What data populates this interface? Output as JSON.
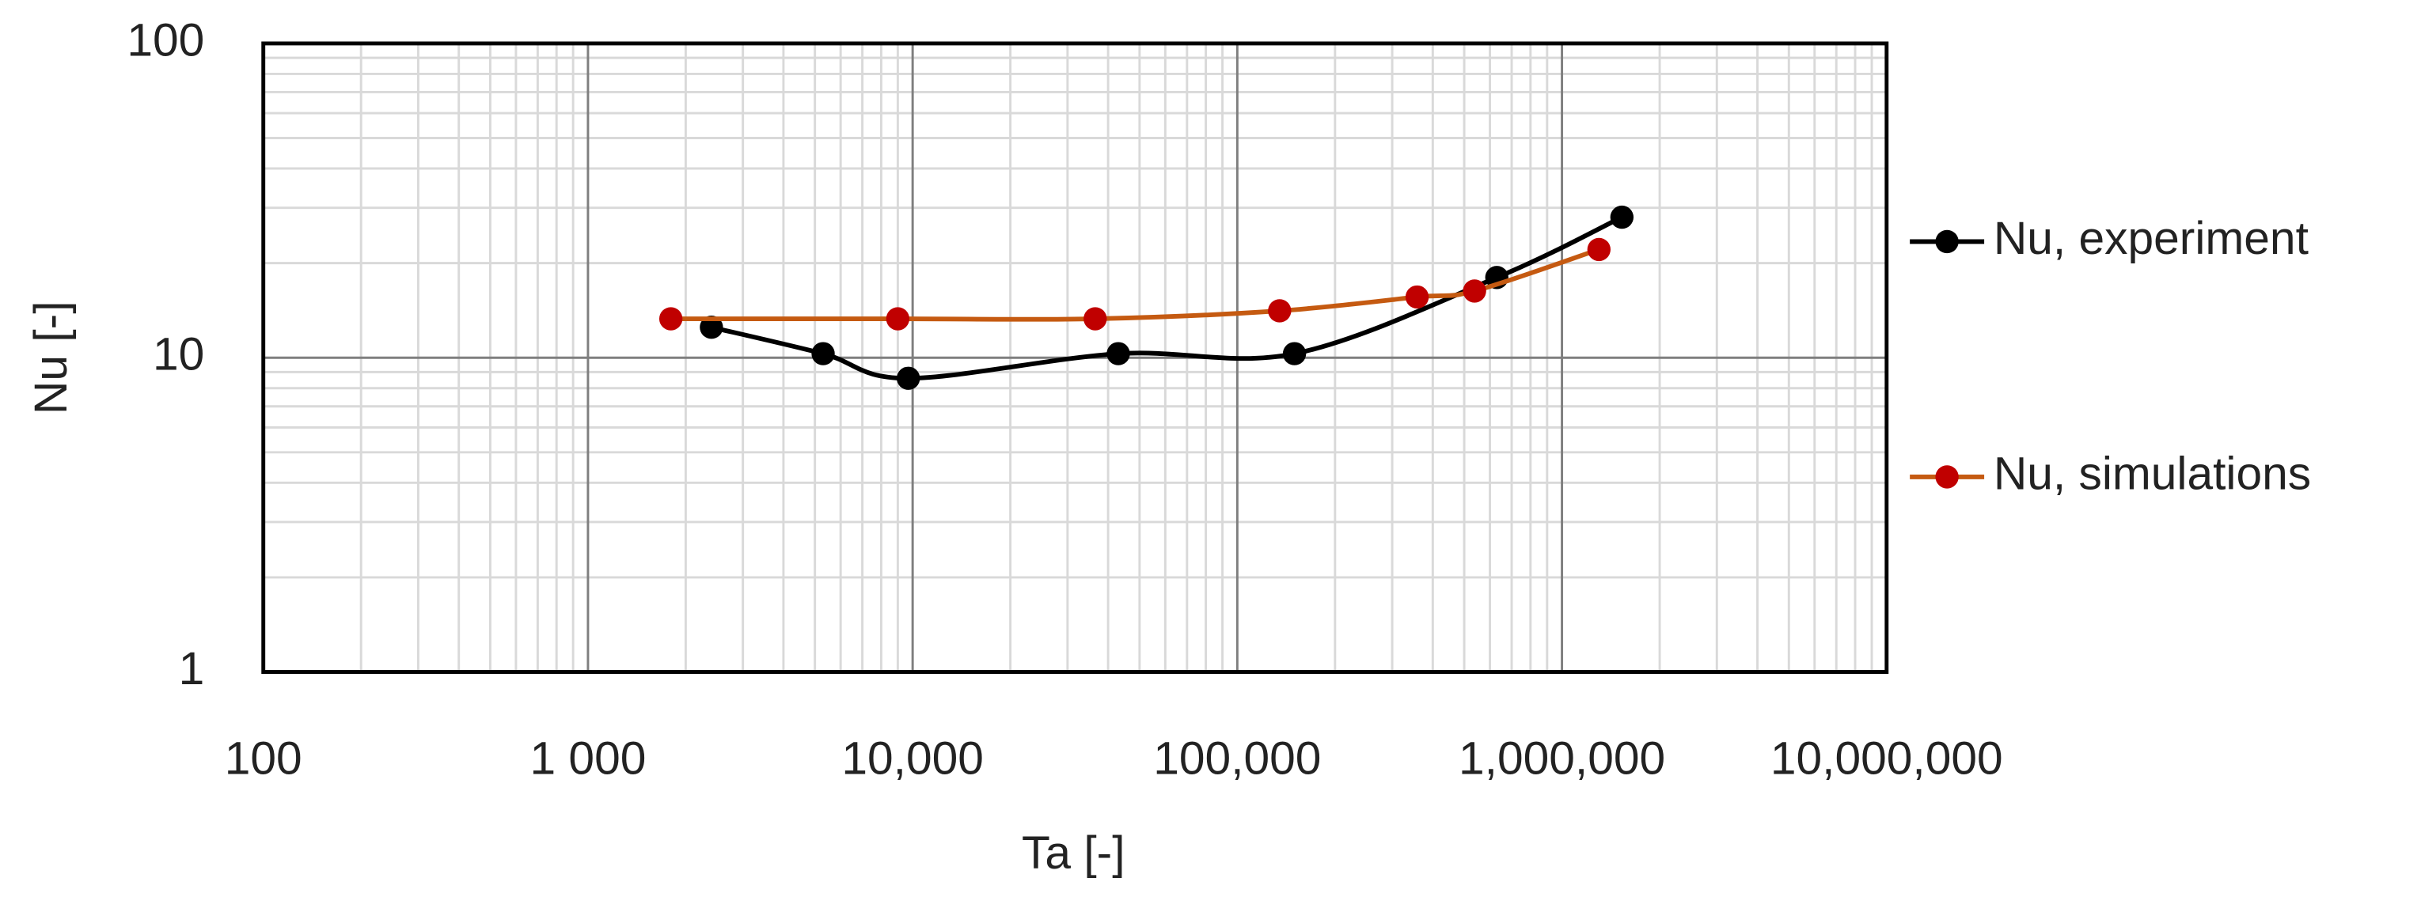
{
  "chart_data": {
    "type": "line",
    "x_label": "Ta [-]",
    "y_label": "Nu [-]",
    "xscale": "log",
    "yscale": "log",
    "xlim": [
      100,
      10000000
    ],
    "ylim": [
      1,
      100
    ],
    "xticks": [
      100,
      {
        "value": 1000,
        "label": "1 000"
      },
      {
        "value": 10000,
        "label": "10,000"
      },
      {
        "value": 100000,
        "label": "100,000"
      },
      {
        "value": 1000000,
        "label": "1,000,000"
      },
      {
        "value": 10000000,
        "label": "10,000,000"
      }
    ],
    "yticks": [
      1,
      10,
      100
    ],
    "grid": true,
    "minor_grid": true,
    "smooth": true,
    "legend": "right",
    "series": [
      {
        "name": "Nu, experiment",
        "color": "#000000",
        "marker_color": "#000000",
        "x": [
          2400,
          5300,
          9700,
          43000,
          150000,
          630000,
          1530000
        ],
        "values": [
          12.5,
          10.3,
          8.6,
          10.3,
          10.3,
          18,
          28
        ]
      },
      {
        "name": "Nu, simulations",
        "color": "#c55a11",
        "marker_color": "#c00000",
        "x": [
          1800,
          9000,
          36500,
          135000,
          358000,
          538000,
          1300000
        ],
        "values": [
          13.3,
          13.3,
          13.3,
          14.1,
          15.6,
          16.3,
          22.1
        ]
      }
    ]
  }
}
